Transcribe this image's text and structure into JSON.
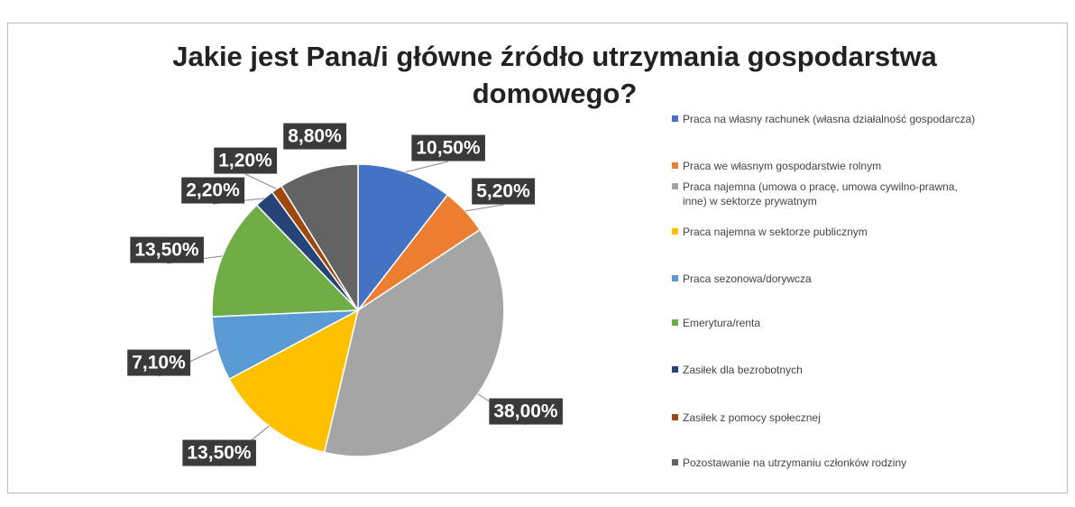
{
  "chart_data": {
    "type": "pie",
    "title": "Jakie jest Pana/i główne źródło utrzymania gospodarstwa domowego?",
    "categories": [
      "Praca na własny rachunek (własna działalność gospodarcza)",
      "Praca we własnym gospodarstwie rolnym",
      "Praca najemna (umowa o pracę, umowa cywilno-prawna, inne) w sektorze prywatnym",
      "Praca najemna w sektorze publicznym",
      "Praca sezonowa/dorywcza",
      "Emerytura/renta",
      "Zasiłek dla bezrobotnych",
      "Zasiłek z pomocy społecznej",
      "Pozostawanie na utrzymaniu członków rodziny"
    ],
    "values": [
      10.5,
      5.2,
      38.0,
      13.5,
      7.1,
      13.5,
      2.2,
      1.2,
      8.8
    ],
    "value_labels": [
      "10,50%",
      "5,20%",
      "38,00%",
      "13,50%",
      "7,10%",
      "13,50%",
      "2,20%",
      "1,20%",
      "8,80%"
    ],
    "colors": [
      "#4472c4",
      "#ed7d31",
      "#a5a5a5",
      "#ffc000",
      "#5b9bd5",
      "#70ad47",
      "#264478",
      "#9e480e",
      "#636363"
    ],
    "legend": "right"
  }
}
